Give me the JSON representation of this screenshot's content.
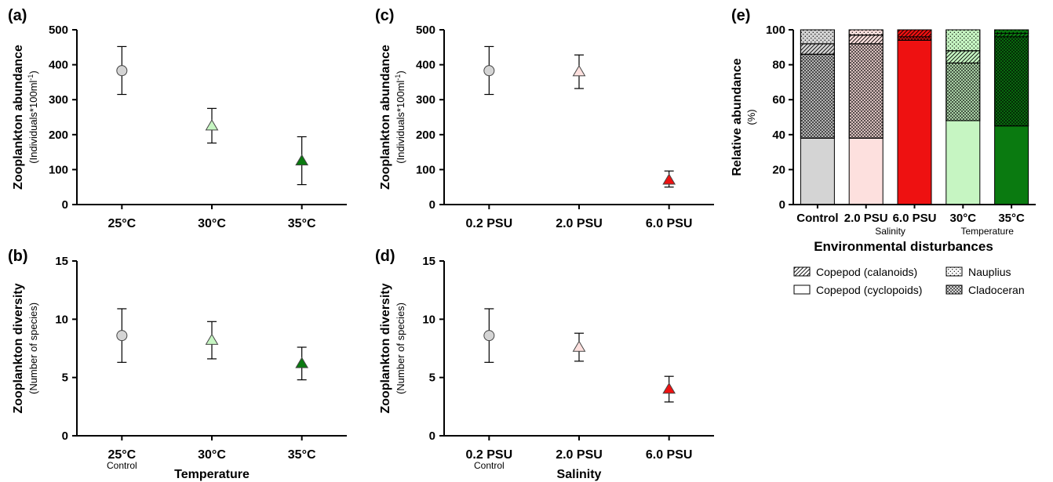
{
  "chart_data": [
    {
      "panel": "(a)",
      "type": "scatter",
      "categories": [
        "25°C",
        "30°C",
        "35°C"
      ],
      "sublabels": [
        "",
        "",
        ""
      ],
      "values": [
        383,
        225,
        125
      ],
      "err_low": [
        315,
        176,
        57
      ],
      "err_high": [
        452,
        275,
        194
      ],
      "markers": [
        "circle",
        "triangle",
        "triangle"
      ],
      "colors": [
        "#d4d4d4",
        "#c6f5c2",
        "#0a7a10"
      ],
      "ylabel": "Zooplankton abundance",
      "ylabel_sub": "(Individuals*100ml",
      "ylabel_sup": "-1",
      "ylabel_close": ")",
      "xlabel": "",
      "ylim": [
        0,
        500
      ],
      "yticks": [
        0,
        100,
        200,
        300,
        400,
        500
      ]
    },
    {
      "panel": "(b)",
      "type": "scatter",
      "categories": [
        "25°C",
        "30°C",
        "35°C"
      ],
      "sublabels": [
        "Control",
        "",
        ""
      ],
      "values": [
        8.6,
        8.2,
        6.2
      ],
      "err_low": [
        6.3,
        6.6,
        4.8
      ],
      "err_high": [
        10.9,
        9.8,
        7.6
      ],
      "markers": [
        "circle",
        "triangle",
        "triangle"
      ],
      "colors": [
        "#d4d4d4",
        "#c6f5c2",
        "#0a7a10"
      ],
      "ylabel": "Zooplankton diversity",
      "ylabel_sub": "(Number of species)",
      "ylabel_sup": "",
      "ylabel_close": "",
      "xlabel": "Temperature",
      "ylim": [
        0,
        15
      ],
      "yticks": [
        0,
        5,
        10,
        15
      ]
    },
    {
      "panel": "(c)",
      "type": "scatter",
      "categories": [
        "0.2 PSU",
        "2.0 PSU",
        "6.0 PSU"
      ],
      "sublabels": [
        "",
        "",
        ""
      ],
      "values": [
        383,
        380,
        70
      ],
      "err_low": [
        315,
        332,
        50
      ],
      "err_high": [
        452,
        428,
        96
      ],
      "markers": [
        "circle",
        "triangle",
        "triangle"
      ],
      "colors": [
        "#d4d4d4",
        "#fde0de",
        "#ee1111"
      ],
      "ylabel": "Zooplankton abundance",
      "ylabel_sub": "(Individuals*100ml",
      "ylabel_sup": "-1",
      "ylabel_close": ")",
      "xlabel": "",
      "ylim": [
        0,
        500
      ],
      "yticks": [
        0,
        100,
        200,
        300,
        400,
        500
      ]
    },
    {
      "panel": "(d)",
      "type": "scatter",
      "categories": [
        "0.2 PSU",
        "2.0 PSU",
        "6.0 PSU"
      ],
      "sublabels": [
        "Control",
        "",
        ""
      ],
      "values": [
        8.6,
        7.6,
        4.0
      ],
      "err_low": [
        6.3,
        6.4,
        2.9
      ],
      "err_high": [
        10.9,
        8.8,
        5.1
      ],
      "markers": [
        "circle",
        "triangle",
        "triangle"
      ],
      "colors": [
        "#d4d4d4",
        "#fde0de",
        "#ee1111"
      ],
      "ylabel": "Zooplankton diversity",
      "ylabel_sub": "(Number of species)",
      "ylabel_sup": "",
      "ylabel_close": "",
      "xlabel": "Salinity",
      "ylim": [
        0,
        15
      ],
      "yticks": [
        0,
        5,
        10,
        15
      ]
    },
    {
      "panel": "(e)",
      "type": "bar",
      "stacked": true,
      "categories": [
        "Control",
        "2.0 PSU",
        "6.0 PSU",
        "30°C",
        "35°C"
      ],
      "category_colors": [
        "#d4d4d4",
        "#fde0de",
        "#ee1111",
        "#c6f5c2",
        "#0a7a10"
      ],
      "group_labels": [
        {
          "text": "Salinity",
          "category": 1.5
        },
        {
          "text": "Temperature",
          "category": 3.5
        }
      ],
      "series": [
        {
          "name": "Copepod (cyclopoids)",
          "pattern": "plain",
          "values": [
            38,
            38,
            94,
            48,
            45
          ]
        },
        {
          "name": "Cladoceran",
          "pattern": "crosshatch",
          "values": [
            48,
            54,
            2,
            33,
            51
          ]
        },
        {
          "name": "Copepod (calanoids)",
          "pattern": "diagonal",
          "values": [
            6,
            5,
            4,
            7,
            2
          ]
        },
        {
          "name": "Nauplius",
          "pattern": "dots",
          "values": [
            8,
            3,
            0,
            12,
            2
          ]
        }
      ],
      "ylabel": "Relative abundance",
      "ylabel_sub": "(%)",
      "xlabel": "Environmental disturbances",
      "ylim": [
        0,
        100
      ],
      "yticks": [
        0,
        20,
        40,
        60,
        80,
        100
      ],
      "legend": [
        "Copepod (calanoids)",
        "Nauplius",
        "Copepod (cyclopoids)",
        "Cladoceran"
      ]
    }
  ]
}
